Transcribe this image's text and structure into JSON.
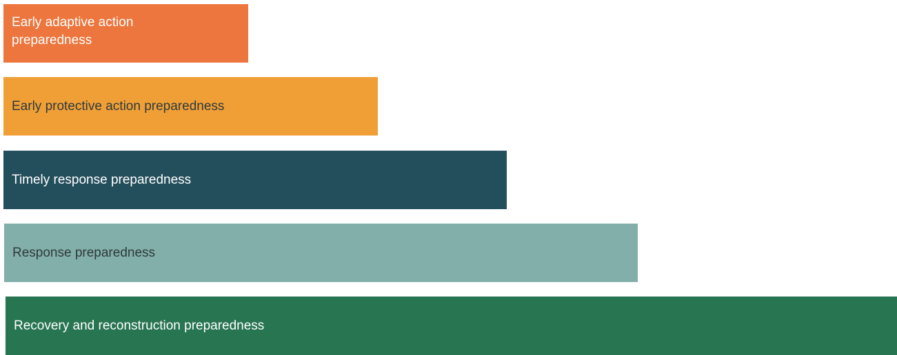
{
  "diagram": {
    "bars": [
      {
        "label": "Early adaptive action preparedness",
        "color": "#EC763D",
        "text_color": "#ffffff"
      },
      {
        "label": "Early protective action preparedness",
        "color": "#F09F36",
        "text_color": "#2E3A3C"
      },
      {
        "label": "Timely response preparedness",
        "color": "#234E5C",
        "text_color": "#ffffff"
      },
      {
        "label": "Response preparedness",
        "color": "#83AFAA",
        "text_color": "#2E3A3C"
      },
      {
        "label": "Recovery and reconstruction preparedness",
        "color": "#287552",
        "text_color": "#ffffff"
      }
    ]
  }
}
